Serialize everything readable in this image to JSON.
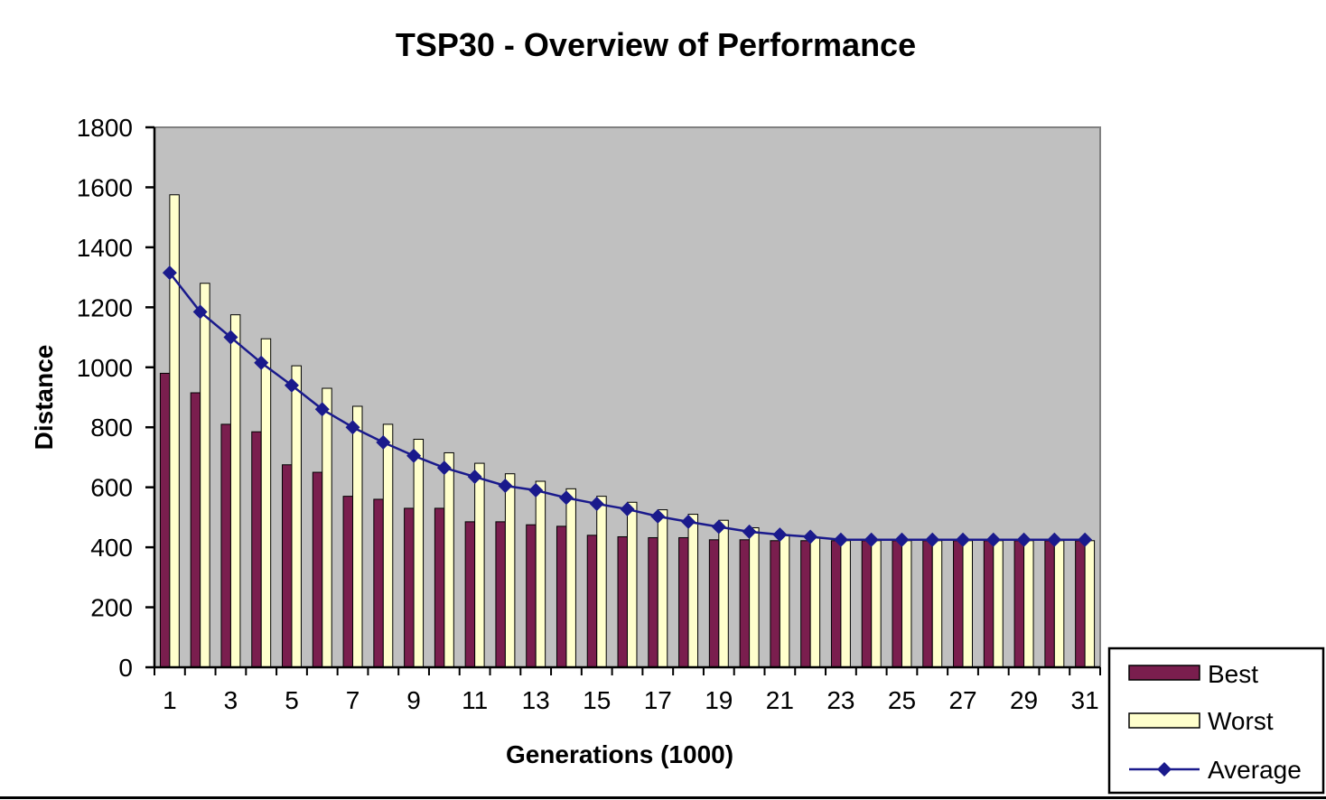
{
  "colors": {
    "plot_background": "#c0c0c0",
    "best": "#7a1e4e",
    "worst": "#ffffcc",
    "average": "#1a1a8c",
    "axis": "#000000"
  },
  "chart_data": {
    "type": "bar",
    "title": "TSP30 - Overview of Performance",
    "xlabel": "Generations (1000)",
    "ylabel": "Distance",
    "ylim": [
      0,
      1800
    ],
    "yticks": [
      0,
      200,
      400,
      600,
      800,
      1000,
      1200,
      1400,
      1600,
      1800
    ],
    "x": [
      1,
      2,
      3,
      4,
      5,
      6,
      7,
      8,
      9,
      10,
      11,
      12,
      13,
      14,
      15,
      16,
      17,
      18,
      19,
      20,
      21,
      22,
      23,
      24,
      25,
      26,
      27,
      28,
      29,
      30,
      31
    ],
    "xtick_labels": [
      "1",
      "3",
      "5",
      "7",
      "9",
      "11",
      "13",
      "15",
      "17",
      "19",
      "21",
      "23",
      "25",
      "27",
      "29",
      "31"
    ],
    "grid": false,
    "legend_position": "bottom-right",
    "series": [
      {
        "name": "Best",
        "kind": "bar",
        "values": [
          980,
          915,
          810,
          785,
          675,
          650,
          570,
          560,
          530,
          530,
          485,
          485,
          475,
          470,
          440,
          435,
          432,
          432,
          425,
          425,
          422,
          422,
          422,
          422,
          422,
          422,
          422,
          422,
          422,
          422,
          422
        ]
      },
      {
        "name": "Worst",
        "kind": "bar",
        "values": [
          1575,
          1280,
          1175,
          1095,
          1005,
          930,
          870,
          810,
          760,
          715,
          680,
          645,
          620,
          595,
          570,
          550,
          525,
          510,
          490,
          465,
          442,
          432,
          422,
          422,
          422,
          422,
          422,
          422,
          422,
          422,
          422
        ]
      },
      {
        "name": "Average",
        "kind": "line",
        "values": [
          1315,
          1185,
          1100,
          1015,
          940,
          860,
          800,
          750,
          705,
          665,
          635,
          605,
          590,
          565,
          545,
          527,
          503,
          485,
          468,
          452,
          442,
          435,
          425,
          425,
          425,
          425,
          425,
          425,
          425,
          425,
          425
        ]
      }
    ]
  }
}
